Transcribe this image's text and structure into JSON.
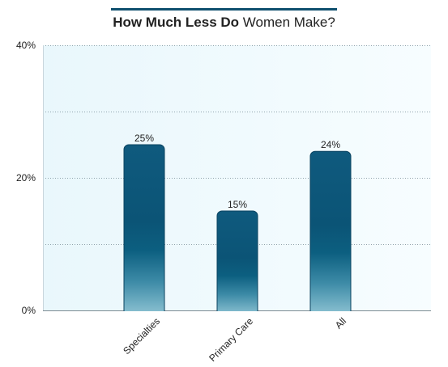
{
  "title": {
    "bold": "How Much Less Do",
    "light": "Women Make?"
  },
  "chart_data": {
    "type": "bar",
    "title": "How Much Less Do Women Make?",
    "categories": [
      "Specialties",
      "Primary Care",
      "All"
    ],
    "values": [
      25,
      15,
      24
    ],
    "data_labels": [
      "25%",
      "15%",
      "24%"
    ],
    "ylim": [
      0,
      40
    ],
    "y_ticks": [
      0,
      20,
      40
    ],
    "y_tick_labels": [
      "0%",
      "20%",
      "40%"
    ],
    "grid": true,
    "bar_color": "#0c5477",
    "bar_color_light": "#8ec3d3",
    "plot_background": "#eef9fd"
  }
}
